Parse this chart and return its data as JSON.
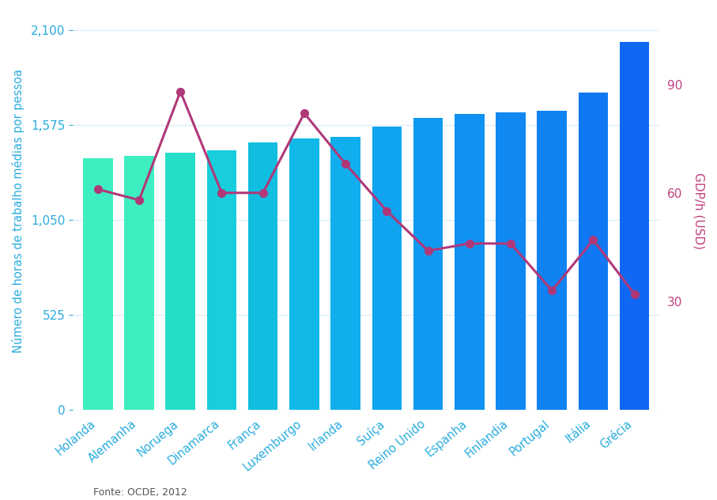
{
  "categories": [
    "Holanda",
    "Alemanha",
    "Noruega",
    "Dinamarca",
    "França",
    "Luxemburgo",
    "Irlanda",
    "Suíça",
    "Reino Unido",
    "Espanha",
    "Finlandia",
    "Portugal",
    "Itália",
    "Grécia"
  ],
  "bar_heights": [
    1390,
    1406,
    1420,
    1436,
    1479,
    1502,
    1511,
    1568,
    1614,
    1636,
    1643,
    1653,
    1752,
    2034
  ],
  "gdp_values": [
    61,
    58,
    88,
    60,
    60,
    82,
    68,
    55,
    44,
    46,
    46,
    33,
    47,
    32
  ],
  "bar_colors": [
    "#3EEEC0",
    "#3EEEC0",
    "#25DEC8",
    "#18CEDC",
    "#10BEE0",
    "#10B8E8",
    "#10AEED",
    "#10A4F0",
    "#1099F0",
    "#1092F2",
    "#1088F2",
    "#1082F2",
    "#1078F2",
    "#1068F2"
  ],
  "line_color": "#B03878",
  "left_ylabel": "Número de horas de trabalho médias por pessoa",
  "right_ylabel": "GDP/h (USD)",
  "source_text": "Fonte: OCDE, 2012",
  "ylim_left": [
    0,
    2200
  ],
  "ylim_right": [
    0,
    110
  ],
  "yticks_left": [
    0,
    525,
    1050,
    1575,
    2100
  ],
  "ytick_labels_left": [
    "0",
    "525",
    "1,050",
    "1,575",
    "2,100"
  ],
  "yticks_right": [
    30,
    60,
    90
  ],
  "background_color": "#FFFFFF",
  "label_color_left": "#2AACDE",
  "label_color_right": "#C04080",
  "grid_color": "#D8EEF8"
}
